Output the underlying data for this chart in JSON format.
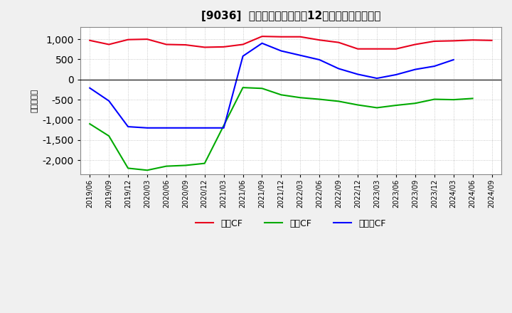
{
  "title": "[9036]  キャッシュフローの12か月移動合計の推移",
  "ylabel": "（百万円）",
  "ylim": [
    -2350,
    1300
  ],
  "yticks": [
    -2000,
    -1500,
    -1000,
    -500,
    0,
    500,
    1000
  ],
  "x_labels": [
    "2019/06",
    "2019/09",
    "2019/12",
    "2020/03",
    "2020/06",
    "2020/09",
    "2020/12",
    "2021/03",
    "2021/06",
    "2021/09",
    "2021/12",
    "2022/03",
    "2022/06",
    "2022/09",
    "2022/12",
    "2023/03",
    "2023/06",
    "2023/09",
    "2023/12",
    "2024/03",
    "2024/06",
    "2024/09"
  ],
  "eigyo_cf": [
    970,
    870,
    990,
    1000,
    870,
    860,
    800,
    810,
    870,
    1070,
    1060,
    1060,
    980,
    920,
    760,
    760,
    760,
    870,
    950,
    960,
    980,
    970
  ],
  "toshi_cf": [
    -1100,
    -1400,
    -2200,
    -2250,
    -2150,
    -2130,
    -2080,
    -1140,
    -200,
    -220,
    -380,
    -450,
    -490,
    -540,
    -630,
    -700,
    -640,
    -590,
    -490,
    -500,
    -470,
    null
  ],
  "free_cf": [
    -210,
    -530,
    -1170,
    -1200,
    -1200,
    -1200,
    -1200,
    -1200,
    580,
    900,
    710,
    600,
    490,
    270,
    130,
    30,
    120,
    250,
    330,
    490,
    null,
    null
  ],
  "eigyo_color": "#e8001c",
  "toshi_color": "#00aa00",
  "free_color": "#0000ff",
  "bg_color": "#f0f0f0",
  "plot_bg_color": "#ffffff",
  "grid_color": "#aaaaaa",
  "legend_labels": [
    "営業CF",
    "投資CF",
    "フリーCF"
  ]
}
